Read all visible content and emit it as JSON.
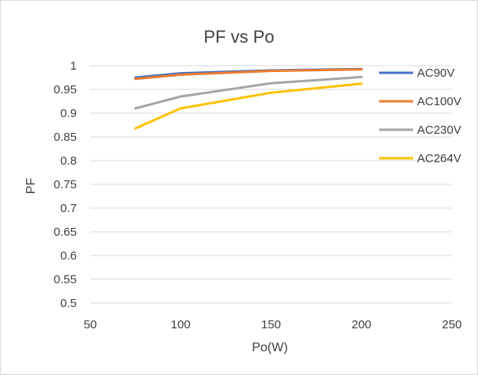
{
  "chart_data": {
    "type": "line",
    "title": "PF vs Po",
    "xlabel": "Po(W)",
    "ylabel": "PF",
    "xlim": [
      50,
      250
    ],
    "ylim": [
      0.5,
      1
    ],
    "x_ticks": [
      "50",
      "100",
      "150",
      "200",
      "250"
    ],
    "y_ticks": [
      "0.5",
      "0.55",
      "0.6",
      "0.65",
      "0.7",
      "0.75",
      "0.8",
      "0.85",
      "0.9",
      "0.95",
      "1"
    ],
    "grid": "horizontal",
    "legend_position": "right",
    "x": [
      75,
      100,
      150,
      200
    ],
    "series": [
      {
        "name": "AC90V",
        "color": "#4472C4",
        "values": [
          0.975,
          0.984,
          0.99,
          0.993
        ]
      },
      {
        "name": "AC100V",
        "color": "#ED7D31",
        "values": [
          0.972,
          0.981,
          0.989,
          0.992
        ]
      },
      {
        "name": "AC230V",
        "color": "#A5A5A5",
        "values": [
          0.91,
          0.935,
          0.963,
          0.976
        ]
      },
      {
        "name": "AC264V",
        "color": "#FFC000",
        "values": [
          0.868,
          0.91,
          0.943,
          0.962
        ]
      }
    ]
  }
}
